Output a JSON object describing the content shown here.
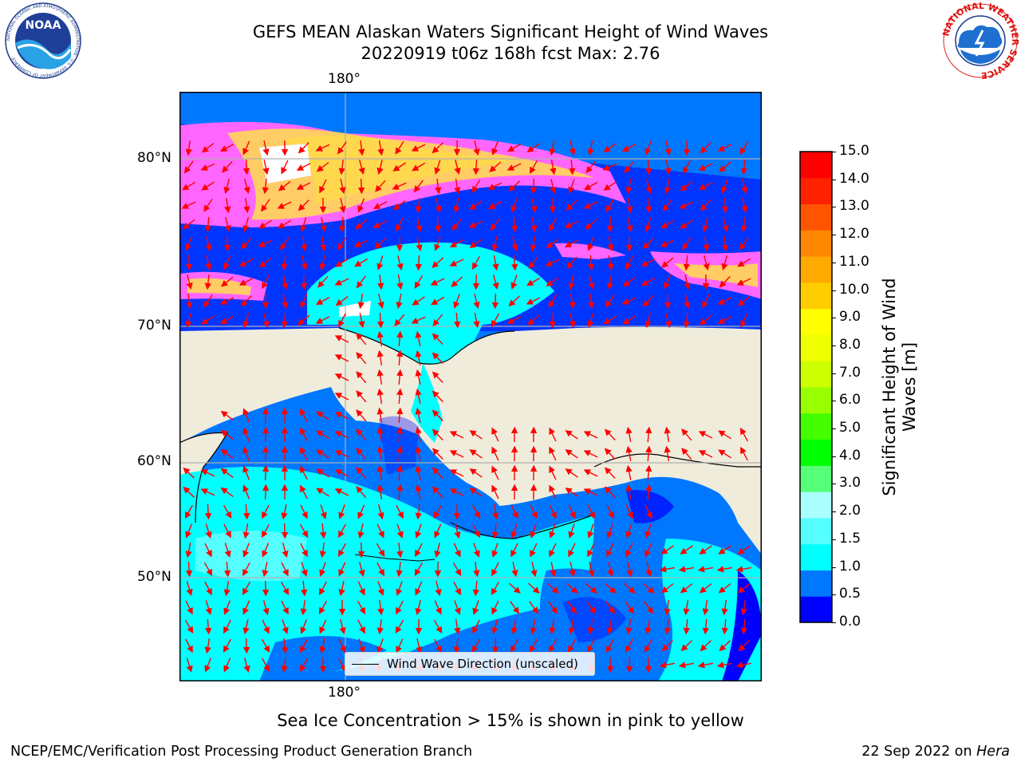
{
  "title": {
    "line1": "GEFS MEAN Alaskan Waters Significant Height of Wind Waves",
    "line2": "20220919 t06z 168h fcst   Max: 2.76"
  },
  "logos": {
    "left": {
      "icon": "noaa-logo",
      "text": "NOAA",
      "ring_text": "NATIONAL OCEANIC AND ATMOSPHERIC ADMINISTRATION · U.S. DEPARTMENT OF COMMERCE"
    },
    "right": {
      "icon": "nws-logo",
      "ring_text": "NATIONAL WEATHER SERVICE"
    }
  },
  "map": {
    "lon_label_top": "180°",
    "lon_label_bottom": "180°",
    "lat_labels": [
      "80°N",
      "70°N",
      "60°N",
      "50°N"
    ],
    "colors": {
      "land": "#efecdc",
      "frame": "#000000",
      "grid": "#b0b0b0",
      "arrow": "#ff0000",
      "ice": [
        "#ff66ff",
        "#ffcc66",
        "#ffd84d"
      ]
    },
    "legend_label": "Wind Wave Direction (unscaled)"
  },
  "colorbar": {
    "title_line1": "Significant Height of Wind",
    "title_line2": "Waves [m]",
    "ticks": [
      "15.0",
      "14.0",
      "13.0",
      "12.0",
      "11.0",
      "10.0",
      "9.0",
      "8.0",
      "7.0",
      "6.0",
      "5.0",
      "4.0",
      "3.0",
      "2.0",
      "1.5",
      "1.0",
      "0.5",
      "0.0"
    ],
    "colors_bottom_to_top": [
      "#0000ff",
      "#0077ff",
      "#00ffff",
      "#55ffff",
      "#aaffff",
      "#55ff77",
      "#00ff00",
      "#44ff00",
      "#99ff00",
      "#ccff00",
      "#eeff00",
      "#ffff00",
      "#ffcc00",
      "#ffaa00",
      "#ff8800",
      "#ff5500",
      "#ff2200",
      "#ff0000"
    ]
  },
  "note": "Sea Ice Concentration > 15% is shown in pink to yellow",
  "footer": {
    "left": "NCEP/EMC/Verification Post Processing Product Generation Branch",
    "right_date": "22 Sep 2022 on ",
    "right_host": "Hera"
  }
}
